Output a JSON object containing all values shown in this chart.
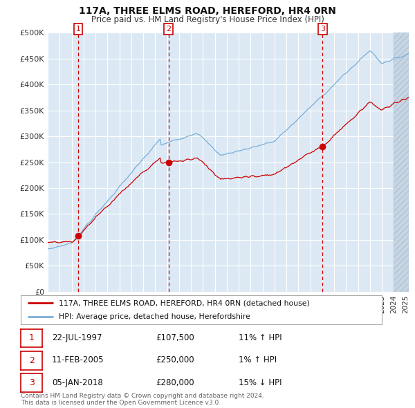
{
  "title1": "117A, THREE ELMS ROAD, HEREFORD, HR4 0RN",
  "title2": "Price paid vs. HM Land Registry's House Price Index (HPI)",
  "legend_label1": "117A, THREE ELMS ROAD, HEREFORD, HR4 0RN (detached house)",
  "legend_label2": "HPI: Average price, detached house, Herefordshire",
  "transactions": [
    {
      "num": 1,
      "date": "22-JUL-1997",
      "date_num": 1997.55,
      "price": 107500,
      "pct": "11%",
      "dir": "↑"
    },
    {
      "num": 2,
      "date": "11-FEB-2005",
      "date_num": 2005.12,
      "price": 250000,
      "pct": "1%",
      "dir": "↑"
    },
    {
      "num": 3,
      "date": "05-JAN-2018",
      "date_num": 2018.03,
      "price": 280000,
      "pct": "15%",
      "dir": "↓"
    }
  ],
  "hpi_color": "#7aaed6",
  "price_color": "#cc0000",
  "dot_color": "#cc0000",
  "vline_color": "#cc0000",
  "bg_color": "#dce9f5",
  "grid_color": "#ffffff",
  "hatch_bg": "#c8d5e2",
  "ylim": [
    0,
    500000
  ],
  "ytick_step": 50000,
  "xlabel_color": "#333333",
  "footer": "Contains HM Land Registry data © Crown copyright and database right 2024.\nThis data is licensed under the Open Government Licence v3.0.",
  "xlim_start": 1995.0,
  "xlim_end": 2025.25,
  "hatch_start": 2024.0
}
